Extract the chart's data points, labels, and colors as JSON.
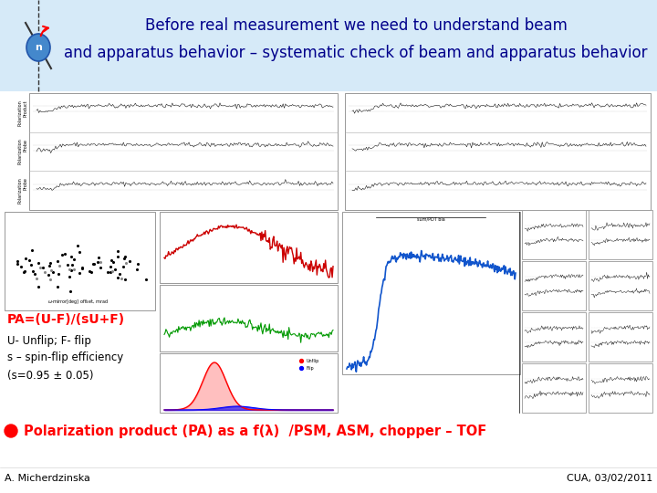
{
  "bg_color": "#ffffff",
  "header_bg": "#d6eaf8",
  "header_text_line1": "Before real measurement we need to understand beam",
  "header_text_line2": "and apparatus behavior – systematic check of beam and apparatus behavior",
  "header_text_color": "#00008B",
  "header_fontsize": 12,
  "pa_formula_text": "PA=(U-F)/(sU+F)",
  "pa_formula_color": "#FF0000",
  "pa_formula_fontsize": 10,
  "description_text": "U- Unflip; F- flip\ns – spin-flip efficiency\n(s=0.95 ± 0.05)",
  "description_fontsize": 8.5,
  "bullet_color": "#FF0000",
  "bullet_text": "Polarization product (PA) as a f(λ)  /PSM, ASM, chopper – TOF",
  "bullet_text_color": "#FF0000",
  "bullet_fontsize": 10.5,
  "footer_left": "A. Micherdzinska",
  "footer_right": "CUA, 03/02/2011",
  "footer_fontsize": 8,
  "footer_color": "#000000"
}
